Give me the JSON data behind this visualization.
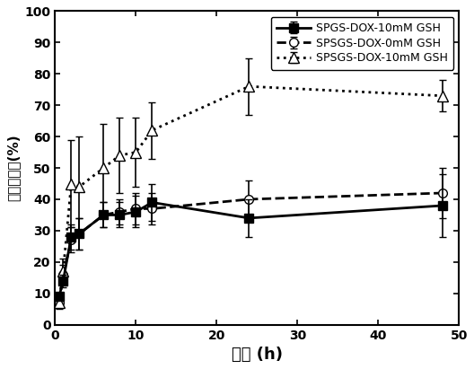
{
  "series1_label": "SPGS-DOX-10mM GSH",
  "series2_label": "SPSGS-DOX-0mM GSH",
  "series3_label": "SPSGS-DOX-10mM GSH",
  "series1_x": [
    0.5,
    1,
    2,
    3,
    6,
    8,
    10,
    12,
    24,
    48
  ],
  "series1_y": [
    9,
    14,
    28,
    29,
    35,
    35,
    36,
    39,
    34,
    38
  ],
  "series1_yerr": [
    1,
    2,
    4,
    5,
    4,
    4,
    5,
    6,
    6,
    10
  ],
  "series2_x": [
    0.5,
    1,
    2,
    3,
    6,
    8,
    10,
    12,
    24,
    48
  ],
  "series2_y": [
    7,
    16,
    27,
    29,
    35,
    36,
    37,
    37,
    40,
    42
  ],
  "series2_yerr": [
    1,
    3,
    4,
    5,
    4,
    4,
    5,
    5,
    6,
    8
  ],
  "series3_x": [
    0.5,
    1,
    2,
    3,
    6,
    8,
    10,
    12,
    24,
    48
  ],
  "series3_y": [
    7,
    17,
    45,
    44,
    50,
    54,
    55,
    62,
    76,
    73
  ],
  "series3_yerr": [
    2,
    4,
    14,
    16,
    14,
    12,
    11,
    9,
    9,
    5
  ],
  "xlabel": "时间 (h)",
  "ylabel": "累积释放量(%)",
  "xlim": [
    0,
    50
  ],
  "ylim": [
    0,
    100
  ],
  "xticks": [
    0,
    10,
    20,
    30,
    40,
    50
  ],
  "yticks": [
    0,
    10,
    20,
    30,
    40,
    50,
    60,
    70,
    80,
    90,
    100
  ],
  "color": "#000000",
  "background": "#ffffff",
  "linewidth": 2.0,
  "markersize": 7
}
